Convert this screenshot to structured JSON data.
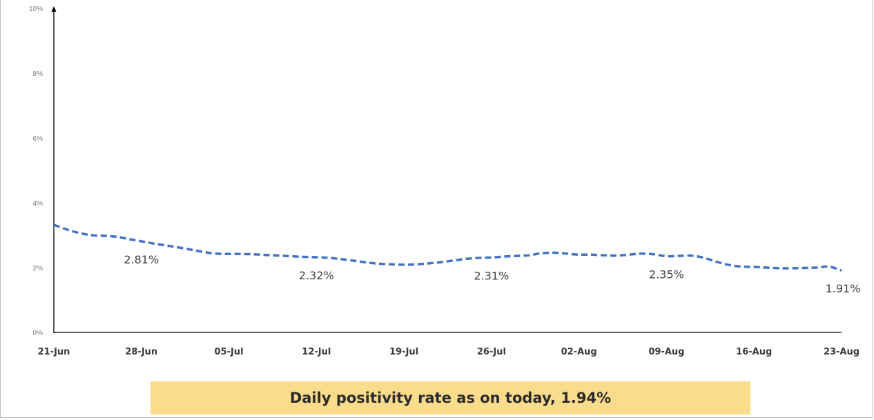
{
  "chart_data": {
    "type": "line",
    "x": [
      "21-Jun",
      "22-Jun",
      "23-Jun",
      "24-Jun",
      "25-Jun",
      "26-Jun",
      "27-Jun",
      "28-Jun",
      "29-Jun",
      "30-Jun",
      "01-Jul",
      "02-Jul",
      "03-Jul",
      "04-Jul",
      "05-Jul",
      "06-Jul",
      "07-Jul",
      "08-Jul",
      "09-Jul",
      "10-Jul",
      "11-Jul",
      "12-Jul",
      "13-Jul",
      "14-Jul",
      "15-Jul",
      "16-Jul",
      "17-Jul",
      "18-Jul",
      "19-Jul",
      "20-Jul",
      "21-Jul",
      "22-Jul",
      "23-Jul",
      "24-Jul",
      "25-Jul",
      "26-Jul",
      "27-Jul",
      "28-Jul",
      "29-Jul",
      "30-Jul",
      "31-Jul",
      "01-Aug",
      "02-Aug",
      "03-Aug",
      "04-Aug",
      "05-Aug",
      "06-Aug",
      "07-Aug",
      "08-Aug",
      "09-Aug",
      "10-Aug",
      "11-Aug",
      "12-Aug",
      "13-Aug",
      "14-Aug",
      "15-Aug",
      "16-Aug",
      "17-Aug",
      "18-Aug",
      "19-Aug",
      "20-Aug",
      "21-Aug",
      "22-Aug",
      "23-Aug"
    ],
    "series": [
      {
        "values": [
          3.32,
          3.18,
          3.07,
          3.0,
          2.98,
          2.95,
          2.88,
          2.81,
          2.74,
          2.68,
          2.62,
          2.55,
          2.48,
          2.43,
          2.42,
          2.42,
          2.41,
          2.39,
          2.37,
          2.35,
          2.33,
          2.32,
          2.3,
          2.26,
          2.21,
          2.16,
          2.12,
          2.1,
          2.09,
          2.1,
          2.13,
          2.17,
          2.22,
          2.27,
          2.3,
          2.31,
          2.34,
          2.36,
          2.38,
          2.44,
          2.46,
          2.43,
          2.4,
          2.4,
          2.38,
          2.37,
          2.4,
          2.43,
          2.41,
          2.35,
          2.36,
          2.37,
          2.3,
          2.18,
          2.08,
          2.03,
          2.02,
          2.0,
          1.98,
          1.98,
          1.99,
          2.0,
          2.03,
          1.91
        ],
        "color": "#4472c4",
        "style": "dashed"
      }
    ],
    "x_tick_labels": [
      "21-Jun",
      "28-Jun",
      "05-Jul",
      "12-Jul",
      "19-Jul",
      "26-Jul",
      "02-Aug",
      "09-Aug",
      "16-Aug",
      "23-Aug"
    ],
    "y_tick_labels": [
      "0%",
      "2%",
      "4%",
      "6%",
      "8%",
      "10%"
    ],
    "ylim": [
      0,
      10
    ],
    "grid": false,
    "annotations": [
      {
        "label": "2.81%",
        "x": "28-Jun",
        "value": 2.81
      },
      {
        "label": "2.32%",
        "x": "12-Jul",
        "value": 2.32
      },
      {
        "label": "2.31%",
        "x": "26-Jul",
        "value": 2.31
      },
      {
        "label": "2.35%",
        "x": "09-Aug",
        "value": 2.35
      },
      {
        "label": "1.91%",
        "x": "23-Aug",
        "value": 1.91
      }
    ]
  },
  "banner": {
    "text": "Daily positivity rate as on today, 1.94%",
    "color": "#fbdb8c"
  }
}
